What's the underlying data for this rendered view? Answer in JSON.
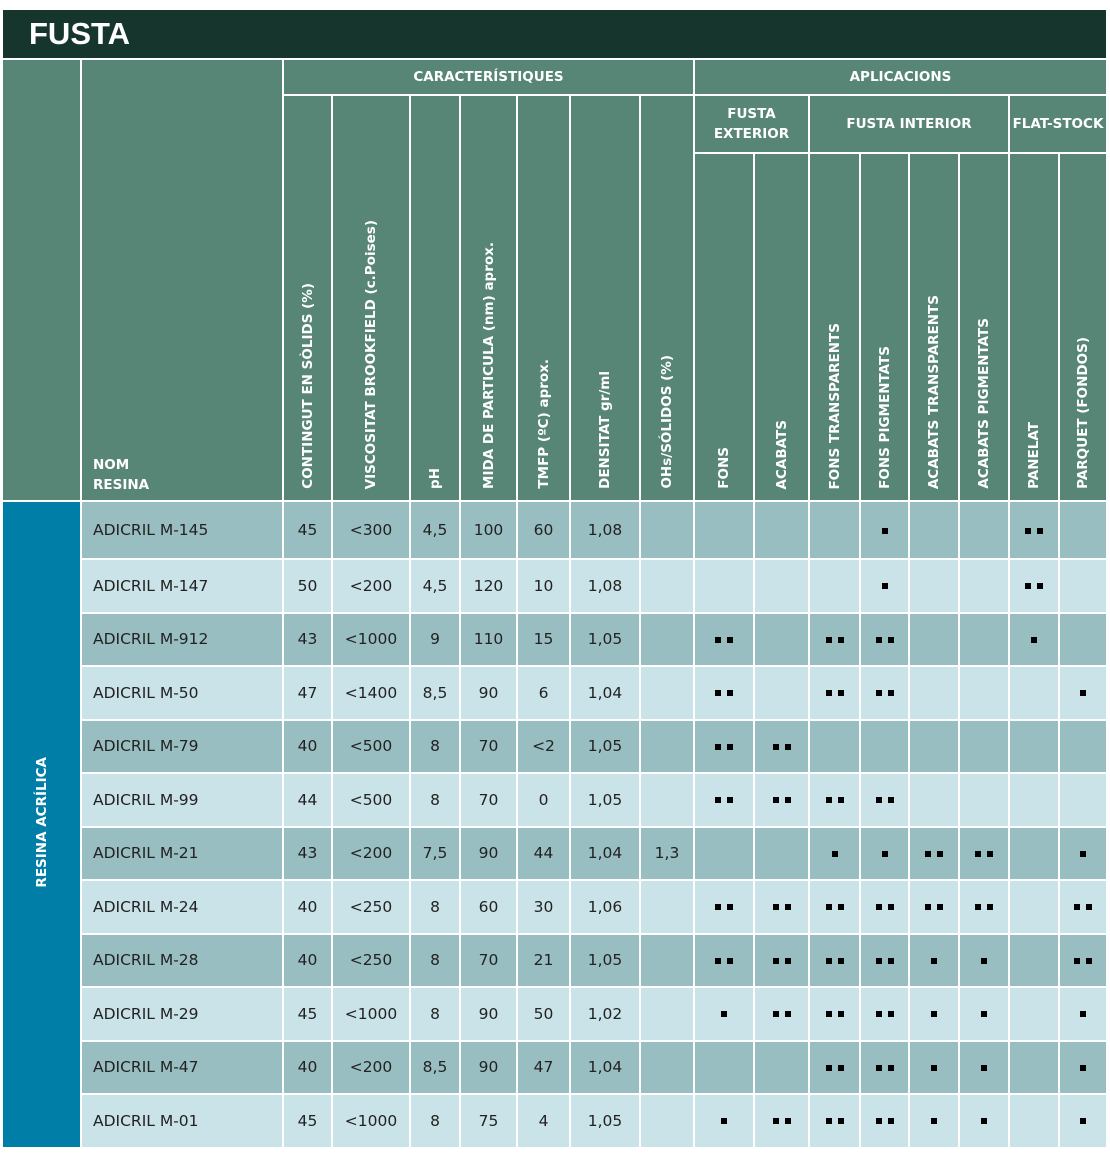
{
  "title": "FUSTA",
  "header": {
    "side_label": "",
    "name_label_1": "NOM",
    "name_label_2": "RESINA",
    "characteristics_group": "CARACTERÍSTIQUES",
    "applications_group": "APLICACIONS",
    "characteristics": [
      "CONTINGUT EN SÒLIDS (%)",
      "VISCOSITAT BROOKFIELD (c.Poises)",
      "pH",
      "MIDA DE PARTICULA (nm) aprox.",
      "TMFP (ºC) aprox.",
      "DENSITAT gr/ml",
      "OHs/SÓLIDOS (%)"
    ],
    "app_groups": [
      "FUSTA EXTERIOR",
      "FUSTA INTERIOR",
      "FLAT-STOCK"
    ],
    "applications": [
      "FONS",
      "ACABATS",
      "FONS TRANSPARENTS",
      "FONS PIGMENTATS",
      "ACABATS TRANSPARENTS",
      "ACABATS PIGMENTATS",
      "PANELAT",
      "PARQUET (FONDOS)"
    ]
  },
  "resin_family": "RESINA ACRÍLICA",
  "rows": [
    {
      "name": "ADICRIL M-145",
      "vals": [
        "45",
        "<300",
        "4,5",
        "100",
        "60",
        "1,08",
        ""
      ],
      "apps": [
        0,
        0,
        0,
        1,
        0,
        0,
        2,
        0
      ]
    },
    {
      "name": "ADICRIL M-147",
      "vals": [
        "50",
        "<200",
        "4,5",
        "120",
        "10",
        "1,08",
        ""
      ],
      "apps": [
        0,
        0,
        0,
        1,
        0,
        0,
        2,
        0
      ]
    },
    {
      "name": "ADICRIL M-912",
      "vals": [
        "43",
        "<1000",
        "9",
        "110",
        "15",
        "1,05",
        ""
      ],
      "apps": [
        2,
        0,
        2,
        2,
        0,
        0,
        1,
        0
      ]
    },
    {
      "name": "ADICRIL M-50",
      "vals": [
        "47",
        "<1400",
        "8,5",
        "90",
        "6",
        "1,04",
        ""
      ],
      "apps": [
        2,
        0,
        2,
        2,
        0,
        0,
        0,
        1
      ]
    },
    {
      "name": "ADICRIL M-79",
      "vals": [
        "40",
        "<500",
        "8",
        "70",
        "<2",
        "1,05",
        ""
      ],
      "apps": [
        2,
        2,
        0,
        0,
        0,
        0,
        0,
        0
      ]
    },
    {
      "name": "ADICRIL M-99",
      "vals": [
        "44",
        "<500",
        "8",
        "70",
        "0",
        "1,05",
        ""
      ],
      "apps": [
        2,
        2,
        2,
        2,
        0,
        0,
        0,
        0
      ]
    },
    {
      "name": "ADICRIL M-21",
      "vals": [
        "43",
        "<200",
        "7,5",
        "90",
        "44",
        "1,04",
        "1,3"
      ],
      "apps": [
        0,
        0,
        1,
        1,
        2,
        2,
        0,
        1
      ]
    },
    {
      "name": "ADICRIL M-24",
      "vals": [
        "40",
        "<250",
        "8",
        "60",
        "30",
        "1,06",
        ""
      ],
      "apps": [
        2,
        2,
        2,
        2,
        2,
        2,
        0,
        2
      ]
    },
    {
      "name": "ADICRIL M-28",
      "vals": [
        "40",
        "<250",
        "8",
        "70",
        "21",
        "1,05",
        ""
      ],
      "apps": [
        2,
        2,
        2,
        2,
        1,
        1,
        0,
        2
      ]
    },
    {
      "name": "ADICRIL M-29",
      "vals": [
        "45",
        "<1000",
        "8",
        "90",
        "50",
        "1,02",
        ""
      ],
      "apps": [
        1,
        2,
        2,
        2,
        1,
        1,
        0,
        1
      ]
    },
    {
      "name": "ADICRIL M-47",
      "vals": [
        "40",
        "<200",
        "8,5",
        "90",
        "47",
        "1,04",
        ""
      ],
      "apps": [
        0,
        0,
        2,
        2,
        1,
        1,
        0,
        1
      ]
    },
    {
      "name": "ADICRIL M-01",
      "vals": [
        "45",
        "<1000",
        "8",
        "75",
        "4",
        "1,05",
        ""
      ],
      "apps": [
        1,
        2,
        2,
        2,
        1,
        1,
        0,
        1
      ]
    }
  ],
  "colors": {
    "title_bg": "#16362d",
    "header_bg": "#588676",
    "row_dark": "#99bec1",
    "row_light": "#cae3e8",
    "side_bg": "#007ea7",
    "mark": "#000000"
  }
}
